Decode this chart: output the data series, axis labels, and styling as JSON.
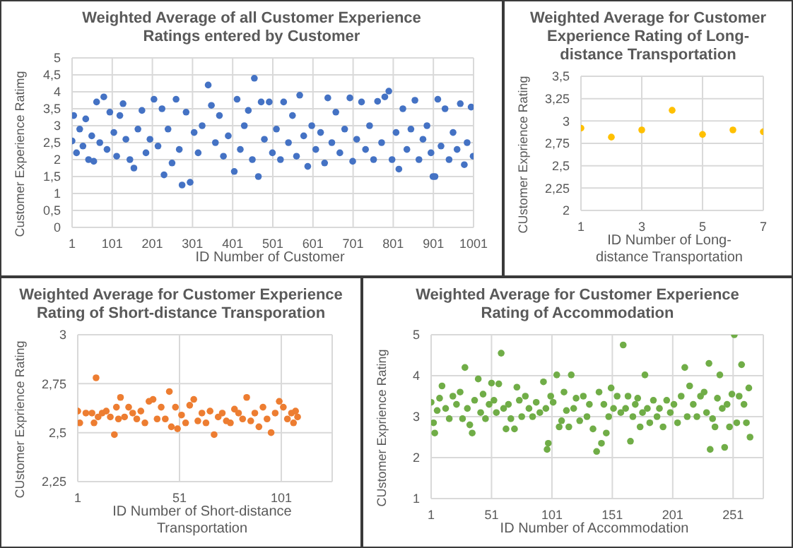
{
  "chart_data": [
    {
      "type": "scatter",
      "title": "Weighted Average of all Customer Experience Ratings entered by Customer",
      "xlabel": "ID Number of Customer",
      "ylabel": "Customer Experience Ratimg",
      "xlim": [
        1,
        1001
      ],
      "xticks": [
        1,
        101,
        201,
        301,
        401,
        501,
        601,
        701,
        801,
        901,
        1001
      ],
      "ylim": [
        0,
        5
      ],
      "yticks": [
        0,
        {
          "value": 0.5,
          "label": "0,5"
        },
        1,
        {
          "value": 1.5,
          "label": "1,5"
        },
        2,
        {
          "value": 2.5,
          "label": "2,5"
        },
        3,
        {
          "value": 3.5,
          "label": "3,5"
        },
        4,
        {
          "value": 4.5,
          "label": "4,5"
        },
        5
      ],
      "grid": true,
      "marker": "circle",
      "series": [
        {
          "color": "#4472c4",
          "x": [
            1,
            5,
            12,
            20,
            28,
            35,
            42,
            50,
            55,
            62,
            70,
            80,
            88,
            95,
            105,
            112,
            120,
            128,
            135,
            145,
            155,
            165,
            175,
            185,
            195,
            205,
            215,
            225,
            230,
            240,
            250,
            260,
            268,
            275,
            285,
            295,
            305,
            315,
            325,
            340,
            348,
            358,
            368,
            378,
            390,
            405,
            412,
            420,
            430,
            440,
            450,
            455,
            465,
            472,
            480,
            492,
            500,
            510,
            520,
            528,
            540,
            550,
            560,
            568,
            578,
            588,
            598,
            608,
            620,
            630,
            638,
            648,
            658,
            668,
            680,
            693,
            700,
            710,
            722,
            732,
            742,
            752,
            762,
            772,
            780,
            790,
            798,
            808,
            815,
            825,
            835,
            845,
            855,
            865,
            875,
            885,
            895,
            900,
            905,
            912,
            920,
            930,
            940,
            950,
            960,
            968,
            978,
            985,
            995,
            1000
          ],
          "values": [
            2.55,
            3.3,
            2.2,
            2.9,
            2.4,
            3.2,
            2.0,
            2.7,
            1.95,
            3.7,
            2.5,
            3.85,
            2.3,
            3.4,
            2.8,
            2.1,
            3.3,
            3.65,
            2.6,
            2.0,
            1.75,
            2.9,
            3.45,
            2.2,
            2.6,
            3.78,
            2.4,
            3.5,
            1.55,
            2.9,
            1.9,
            3.78,
            2.3,
            1.25,
            3.4,
            1.33,
            2.8,
            2.2,
            3.0,
            4.2,
            3.6,
            2.5,
            3.3,
            2.1,
            2.7,
            1.65,
            3.78,
            2.3,
            3.0,
            3.45,
            2.0,
            4.4,
            1.5,
            3.7,
            2.6,
            3.7,
            2.2,
            2.9,
            2.0,
            3.7,
            2.5,
            3.3,
            2.1,
            3.9,
            2.7,
            1.8,
            3.0,
            2.3,
            2.8,
            1.9,
            3.82,
            2.5,
            3.4,
            2.2,
            2.9,
            3.82,
            1.95,
            2.6,
            3.7,
            2.3,
            3.0,
            2.0,
            3.72,
            2.5,
            3.85,
            4.02,
            2.0,
            2.8,
            1.72,
            3.5,
            2.3,
            2.9,
            3.75,
            2.0,
            2.6,
            3.0,
            2.2,
            1.5,
            1.5,
            3.78,
            2.4,
            3.5,
            2.0,
            2.8,
            2.3,
            3.65,
            1.85,
            2.5,
            3.55,
            2.1
          ]
        }
      ]
    },
    {
      "type": "scatter",
      "title": "Weighted Average for Customer Experience Rating of Long-distance Transportation",
      "xlabel": "ID Number of Long-distance Transportation",
      "ylabel": "CUstomer Exprience Rating",
      "xlim": [
        1,
        7
      ],
      "xticks": [
        1,
        3,
        5,
        7
      ],
      "ylim": [
        2,
        3.5
      ],
      "yticks": [
        2,
        {
          "value": 2.25,
          "label": "2,25"
        },
        {
          "value": 2.5,
          "label": "2,5"
        },
        {
          "value": 2.75,
          "label": "2,75"
        },
        3,
        {
          "value": 3.25,
          "label": "3,25"
        },
        {
          "value": 3.5,
          "label": "3,5"
        }
      ],
      "grid": true,
      "marker": "circle",
      "series": [
        {
          "color": "#ffc000",
          "x": [
            1,
            2,
            3,
            4,
            5,
            6,
            7
          ],
          "values": [
            2.92,
            2.82,
            2.9,
            3.12,
            2.85,
            2.9,
            2.88
          ]
        }
      ]
    },
    {
      "type": "scatter",
      "title": "Weighted Average for Customer Experience Rating of Short-distance Transporation",
      "xlabel": "ID Number of Short-distance Transportation",
      "ylabel": "CUstomer Exprience Rating",
      "xlim": [
        1,
        126
      ],
      "xticks": [
        1,
        51,
        101
      ],
      "ylim": [
        2.25,
        3
      ],
      "yticks": [
        {
          "value": 2.25,
          "label": "2,25"
        },
        {
          "value": 2.5,
          "label": "2,5"
        },
        {
          "value": 2.75,
          "label": "2,75"
        },
        3
      ],
      "grid": true,
      "marker": "circle",
      "series": [
        {
          "color": "#ed7d31",
          "x": [
            1,
            2,
            5,
            8,
            9,
            10,
            11,
            13,
            15,
            17,
            19,
            20,
            21,
            22,
            24,
            26,
            28,
            30,
            32,
            34,
            36,
            38,
            40,
            42,
            44,
            46,
            47,
            49,
            50,
            52,
            54,
            56,
            58,
            60,
            62,
            64,
            66,
            68,
            70,
            72,
            74,
            76,
            78,
            80,
            82,
            84,
            86,
            88,
            90,
            92,
            94,
            96,
            98,
            100,
            102,
            104,
            106,
            107,
            108,
            109
          ],
          "values": [
            2.61,
            2.55,
            2.6,
            2.6,
            2.55,
            2.78,
            2.58,
            2.6,
            2.61,
            2.58,
            2.49,
            2.63,
            2.57,
            2.68,
            2.58,
            2.63,
            2.6,
            2.57,
            2.61,
            2.55,
            2.66,
            2.67,
            2.57,
            2.63,
            2.57,
            2.71,
            2.53,
            2.63,
            2.52,
            2.59,
            2.55,
            2.64,
            2.67,
            2.56,
            2.6,
            2.55,
            2.61,
            2.49,
            2.58,
            2.6,
            2.56,
            2.55,
            2.62,
            2.6,
            2.57,
            2.68,
            2.56,
            2.6,
            2.53,
            2.63,
            2.57,
            2.5,
            2.6,
            2.66,
            2.63,
            2.57,
            2.6,
            2.55,
            2.61,
            2.58
          ]
        }
      ]
    },
    {
      "type": "scatter",
      "title": "Weighted Average for Customer Experience Rating of Accommodation",
      "xlabel": "ID Number of Accommodation",
      "ylabel": "CUstomer Exprience Rating",
      "xlim": [
        1,
        276
      ],
      "xticks": [
        1,
        51,
        101,
        151,
        201,
        251
      ],
      "ylim": [
        1,
        5
      ],
      "yticks": [
        1,
        2,
        3,
        4,
        5
      ],
      "grid": true,
      "marker": "circle",
      "series": [
        {
          "color": "#70ad47",
          "x": [
            1,
            3,
            4,
            6,
            8,
            10,
            13,
            16,
            19,
            22,
            25,
            27,
            29,
            31,
            33,
            35,
            37,
            40,
            42,
            44,
            46,
            49,
            51,
            53,
            55,
            57,
            59,
            61,
            63,
            65,
            67,
            70,
            72,
            74,
            76,
            79,
            82,
            85,
            88,
            91,
            94,
            96,
            97,
            98,
            100,
            102,
            105,
            107,
            109,
            111,
            113,
            115,
            117,
            119,
            121,
            124,
            127,
            130,
            132,
            135,
            138,
            140,
            142,
            144,
            146,
            148,
            150,
            152,
            155,
            158,
            160,
            162,
            164,
            166,
            168,
            170,
            172,
            174,
            176,
            178,
            180,
            182,
            185,
            188,
            190,
            193,
            196,
            199,
            202,
            205,
            208,
            211,
            213,
            215,
            218,
            221,
            224,
            227,
            229,
            231,
            232,
            234,
            236,
            238,
            240,
            242,
            244,
            246,
            248,
            250,
            252,
            254,
            256,
            258,
            260,
            262,
            264,
            265
          ],
          "values": [
            3.35,
            2.85,
            2.6,
            3.15,
            3.45,
            3.75,
            3.2,
            2.95,
            3.5,
            3.3,
            3.6,
            2.95,
            4.2,
            3.2,
            2.8,
            2.6,
            3.4,
            3.92,
            3.1,
            3.55,
            2.95,
            3.3,
            3.82,
            3.4,
            3.1,
            3.8,
            4.55,
            3.2,
            2.7,
            3.3,
            2.95,
            2.7,
            3.72,
            3.4,
            3.0,
            3.5,
            3.2,
            3.0,
            3.35,
            3.1,
            3.85,
            3.2,
            2.2,
            2.35,
            3.5,
            3.35,
            4.02,
            2.75,
            2.9,
            3.6,
            3.15,
            2.75,
            4.02,
            3.2,
            3.45,
            2.9,
            3.5,
            3.0,
            3.3,
            2.7,
            2.15,
            3.6,
            2.35,
            3.3,
            2.6,
            3.0,
            3.7,
            3.2,
            3.5,
            3.1,
            4.75,
            3.2,
            3.5,
            2.4,
            3.0,
            3.3,
            3.45,
            2.75,
            3.1,
            4.02,
            3.2,
            2.85,
            3.4,
            3.0,
            3.2,
            2.75,
            3.4,
            3.1,
            3.3,
            2.85,
            3.5,
            4.2,
            3.0,
            3.75,
            3.3,
            3.0,
            3.5,
            3.6,
            3.1,
            4.3,
            2.2,
            2.95,
            2.75,
            3.45,
            4.02,
            3.2,
            2.25,
            3.3,
            2.75,
            3.55,
            5.0,
            2.85,
            3.5,
            4.27,
            3.3,
            2.85,
            3.7,
            2.5
          ]
        }
      ]
    }
  ]
}
